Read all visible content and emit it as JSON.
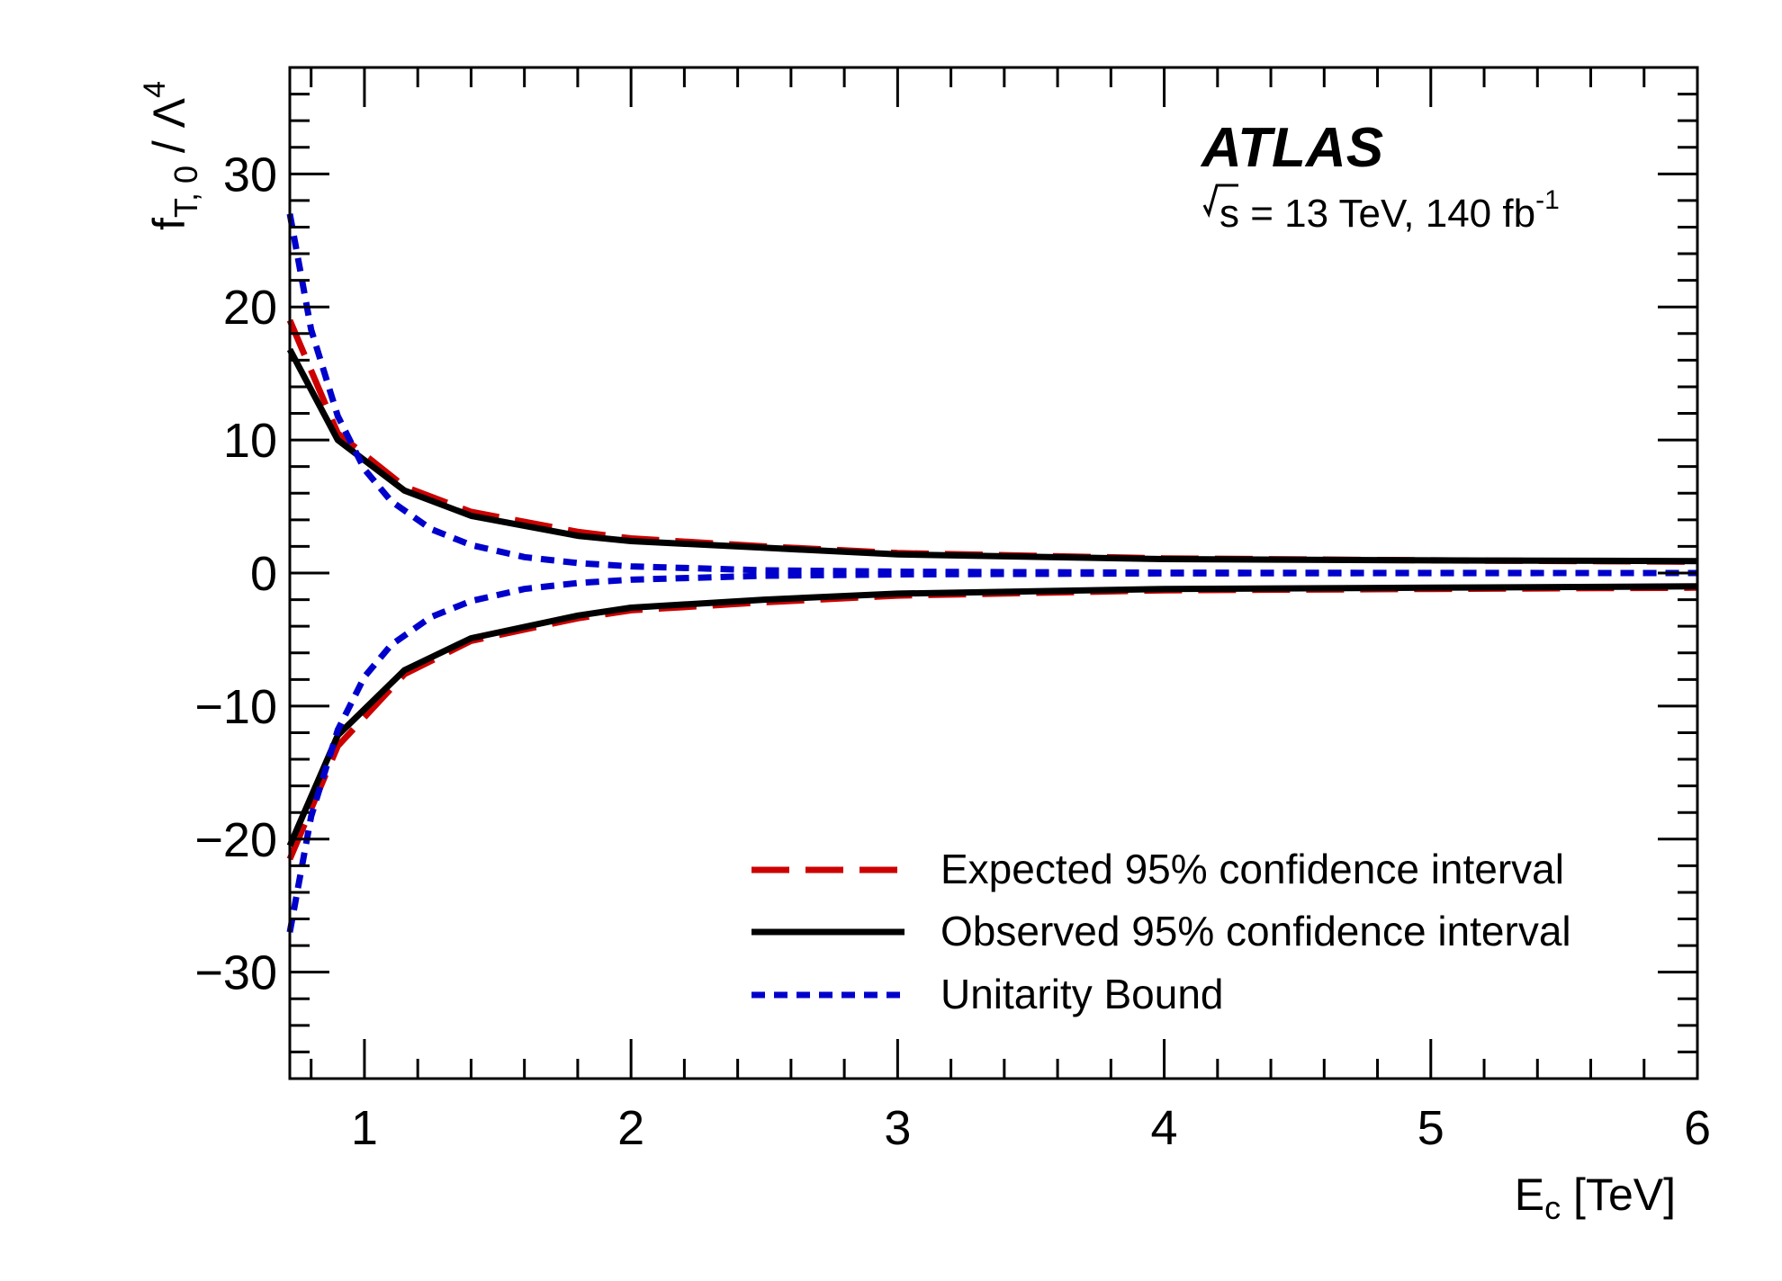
{
  "chart_data": {
    "type": "line",
    "annotation": {
      "experiment": "ATLAS",
      "sqrt_s_symbol": "s",
      "energy_text": " = 13 TeV, 140 fb",
      "lumi_exponent": "-1"
    },
    "xlabel": {
      "main": "E",
      "sub": "c",
      "rest": " [TeV]"
    },
    "ylabel": {
      "main": "f",
      "sub": "T, 0",
      "rest": " / Λ",
      "sup": "4"
    },
    "xlim": [
      0.72,
      6
    ],
    "ylim": [
      -38,
      38
    ],
    "x_ticks": [
      1,
      2,
      3,
      4,
      5,
      6
    ],
    "x_tick_labels": [
      "1",
      "2",
      "3",
      "4",
      "5",
      "6"
    ],
    "y_ticks": [
      -30,
      -20,
      -10,
      0,
      10,
      20,
      30
    ],
    "y_tick_labels": [
      "−30",
      "−20",
      "−10",
      "0",
      "10",
      "20",
      "30"
    ],
    "legend_position": "bottom-right",
    "series": [
      {
        "name": "Expected 95% confidence interval",
        "color": "#cc0000",
        "style": "long-dash",
        "upper": [
          [
            0.72,
            19.0
          ],
          [
            0.9,
            10.5
          ],
          [
            1.15,
            6.5
          ],
          [
            1.4,
            4.6
          ],
          [
            1.8,
            3.1
          ],
          [
            2.0,
            2.6
          ],
          [
            2.5,
            2.0
          ],
          [
            3.0,
            1.5
          ],
          [
            4.0,
            1.1
          ],
          [
            5.0,
            0.95
          ],
          [
            6.0,
            0.85
          ]
        ],
        "lower": [
          [
            0.72,
            -21.5
          ],
          [
            0.9,
            -13.0
          ],
          [
            1.15,
            -7.6
          ],
          [
            1.4,
            -5.1
          ],
          [
            1.8,
            -3.4
          ],
          [
            2.0,
            -2.8
          ],
          [
            2.5,
            -2.2
          ],
          [
            3.0,
            -1.7
          ],
          [
            4.0,
            -1.3
          ],
          [
            5.0,
            -1.2
          ],
          [
            6.0,
            -1.1
          ]
        ]
      },
      {
        "name": "Observed 95% confidence interval",
        "color": "#000000",
        "style": "solid",
        "upper": [
          [
            0.72,
            16.8
          ],
          [
            0.9,
            10.0
          ],
          [
            1.15,
            6.2
          ],
          [
            1.4,
            4.3
          ],
          [
            1.8,
            2.8
          ],
          [
            2.0,
            2.4
          ],
          [
            2.5,
            1.9
          ],
          [
            3.0,
            1.4
          ],
          [
            4.0,
            1.05
          ],
          [
            5.0,
            0.95
          ],
          [
            6.0,
            0.9
          ]
        ],
        "lower": [
          [
            0.72,
            -20.5
          ],
          [
            0.9,
            -12.2
          ],
          [
            1.15,
            -7.3
          ],
          [
            1.4,
            -4.9
          ],
          [
            1.8,
            -3.2
          ],
          [
            2.0,
            -2.6
          ],
          [
            2.5,
            -2.0
          ],
          [
            3.0,
            -1.55
          ],
          [
            4.0,
            -1.2
          ],
          [
            5.0,
            -1.1
          ],
          [
            6.0,
            -1.0
          ]
        ]
      },
      {
        "name": "Unitarity Bound",
        "color": "#0000cc",
        "style": "short-dash",
        "upper": [
          [
            0.72,
            27.0
          ],
          [
            0.8,
            18.3
          ],
          [
            0.9,
            11.8
          ],
          [
            1.0,
            7.8
          ],
          [
            1.1,
            5.4
          ],
          [
            1.25,
            3.3
          ],
          [
            1.4,
            2.1
          ],
          [
            1.6,
            1.2
          ],
          [
            1.8,
            0.75
          ],
          [
            2.0,
            0.5
          ],
          [
            2.5,
            0.2
          ],
          [
            3.0,
            0.1
          ],
          [
            4.0,
            0.03
          ],
          [
            5.0,
            0.01
          ],
          [
            6.0,
            0.0
          ]
        ],
        "lower": [
          [
            0.72,
            -27.0
          ],
          [
            0.8,
            -18.3
          ],
          [
            0.9,
            -11.8
          ],
          [
            1.0,
            -7.8
          ],
          [
            1.1,
            -5.4
          ],
          [
            1.25,
            -3.3
          ],
          [
            1.4,
            -2.1
          ],
          [
            1.6,
            -1.2
          ],
          [
            1.8,
            -0.75
          ],
          [
            2.0,
            -0.5
          ],
          [
            2.5,
            -0.2
          ],
          [
            3.0,
            -0.1
          ],
          [
            4.0,
            -0.03
          ],
          [
            5.0,
            -0.01
          ],
          [
            6.0,
            0.0
          ]
        ]
      }
    ]
  }
}
